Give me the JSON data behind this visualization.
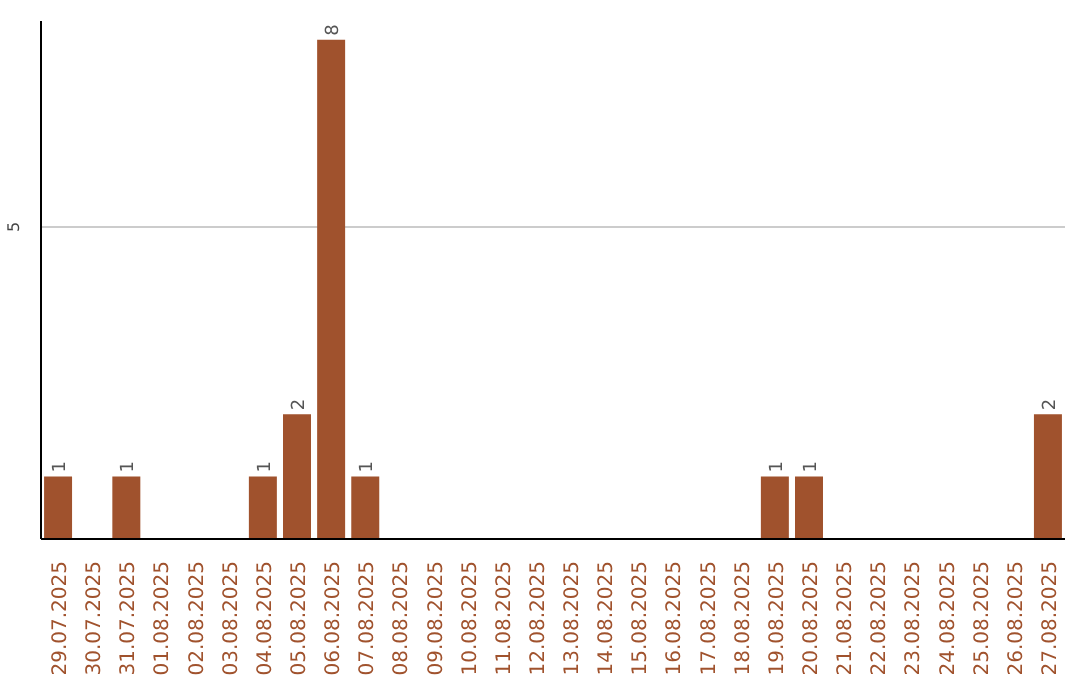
{
  "chart_data": {
    "type": "bar",
    "categories": [
      "29.07.2025",
      "30.07.2025",
      "31.07.2025",
      "01.08.2025",
      "02.08.2025",
      "03.08.2025",
      "04.08.2025",
      "05.08.2025",
      "06.08.2025",
      "07.08.2025",
      "08.08.2025",
      "09.08.2025",
      "10.08.2025",
      "11.08.2025",
      "12.08.2025",
      "13.08.2025",
      "14.08.2025",
      "15.08.2025",
      "16.08.2025",
      "17.08.2025",
      "18.08.2025",
      "19.08.2025",
      "20.08.2025",
      "21.08.2025",
      "22.08.2025",
      "23.08.2025",
      "24.08.2025",
      "25.08.2025",
      "26.08.2025",
      "27.08.2025"
    ],
    "values": [
      1,
      0,
      1,
      0,
      0,
      0,
      1,
      2,
      8,
      1,
      0,
      0,
      0,
      0,
      0,
      0,
      0,
      0,
      0,
      0,
      0,
      1,
      1,
      0,
      0,
      0,
      0,
      0,
      0,
      2
    ],
    "value_labels": [
      "1",
      null,
      "1",
      null,
      null,
      null,
      "1",
      "2",
      "8",
      "1",
      null,
      null,
      null,
      null,
      null,
      null,
      null,
      null,
      null,
      null,
      null,
      "1",
      "1",
      null,
      null,
      null,
      null,
      null,
      null,
      "2"
    ],
    "color": "#a0522d",
    "ylim": [
      0,
      8.3
    ],
    "yticks": [
      5
    ],
    "grid": "y"
  }
}
